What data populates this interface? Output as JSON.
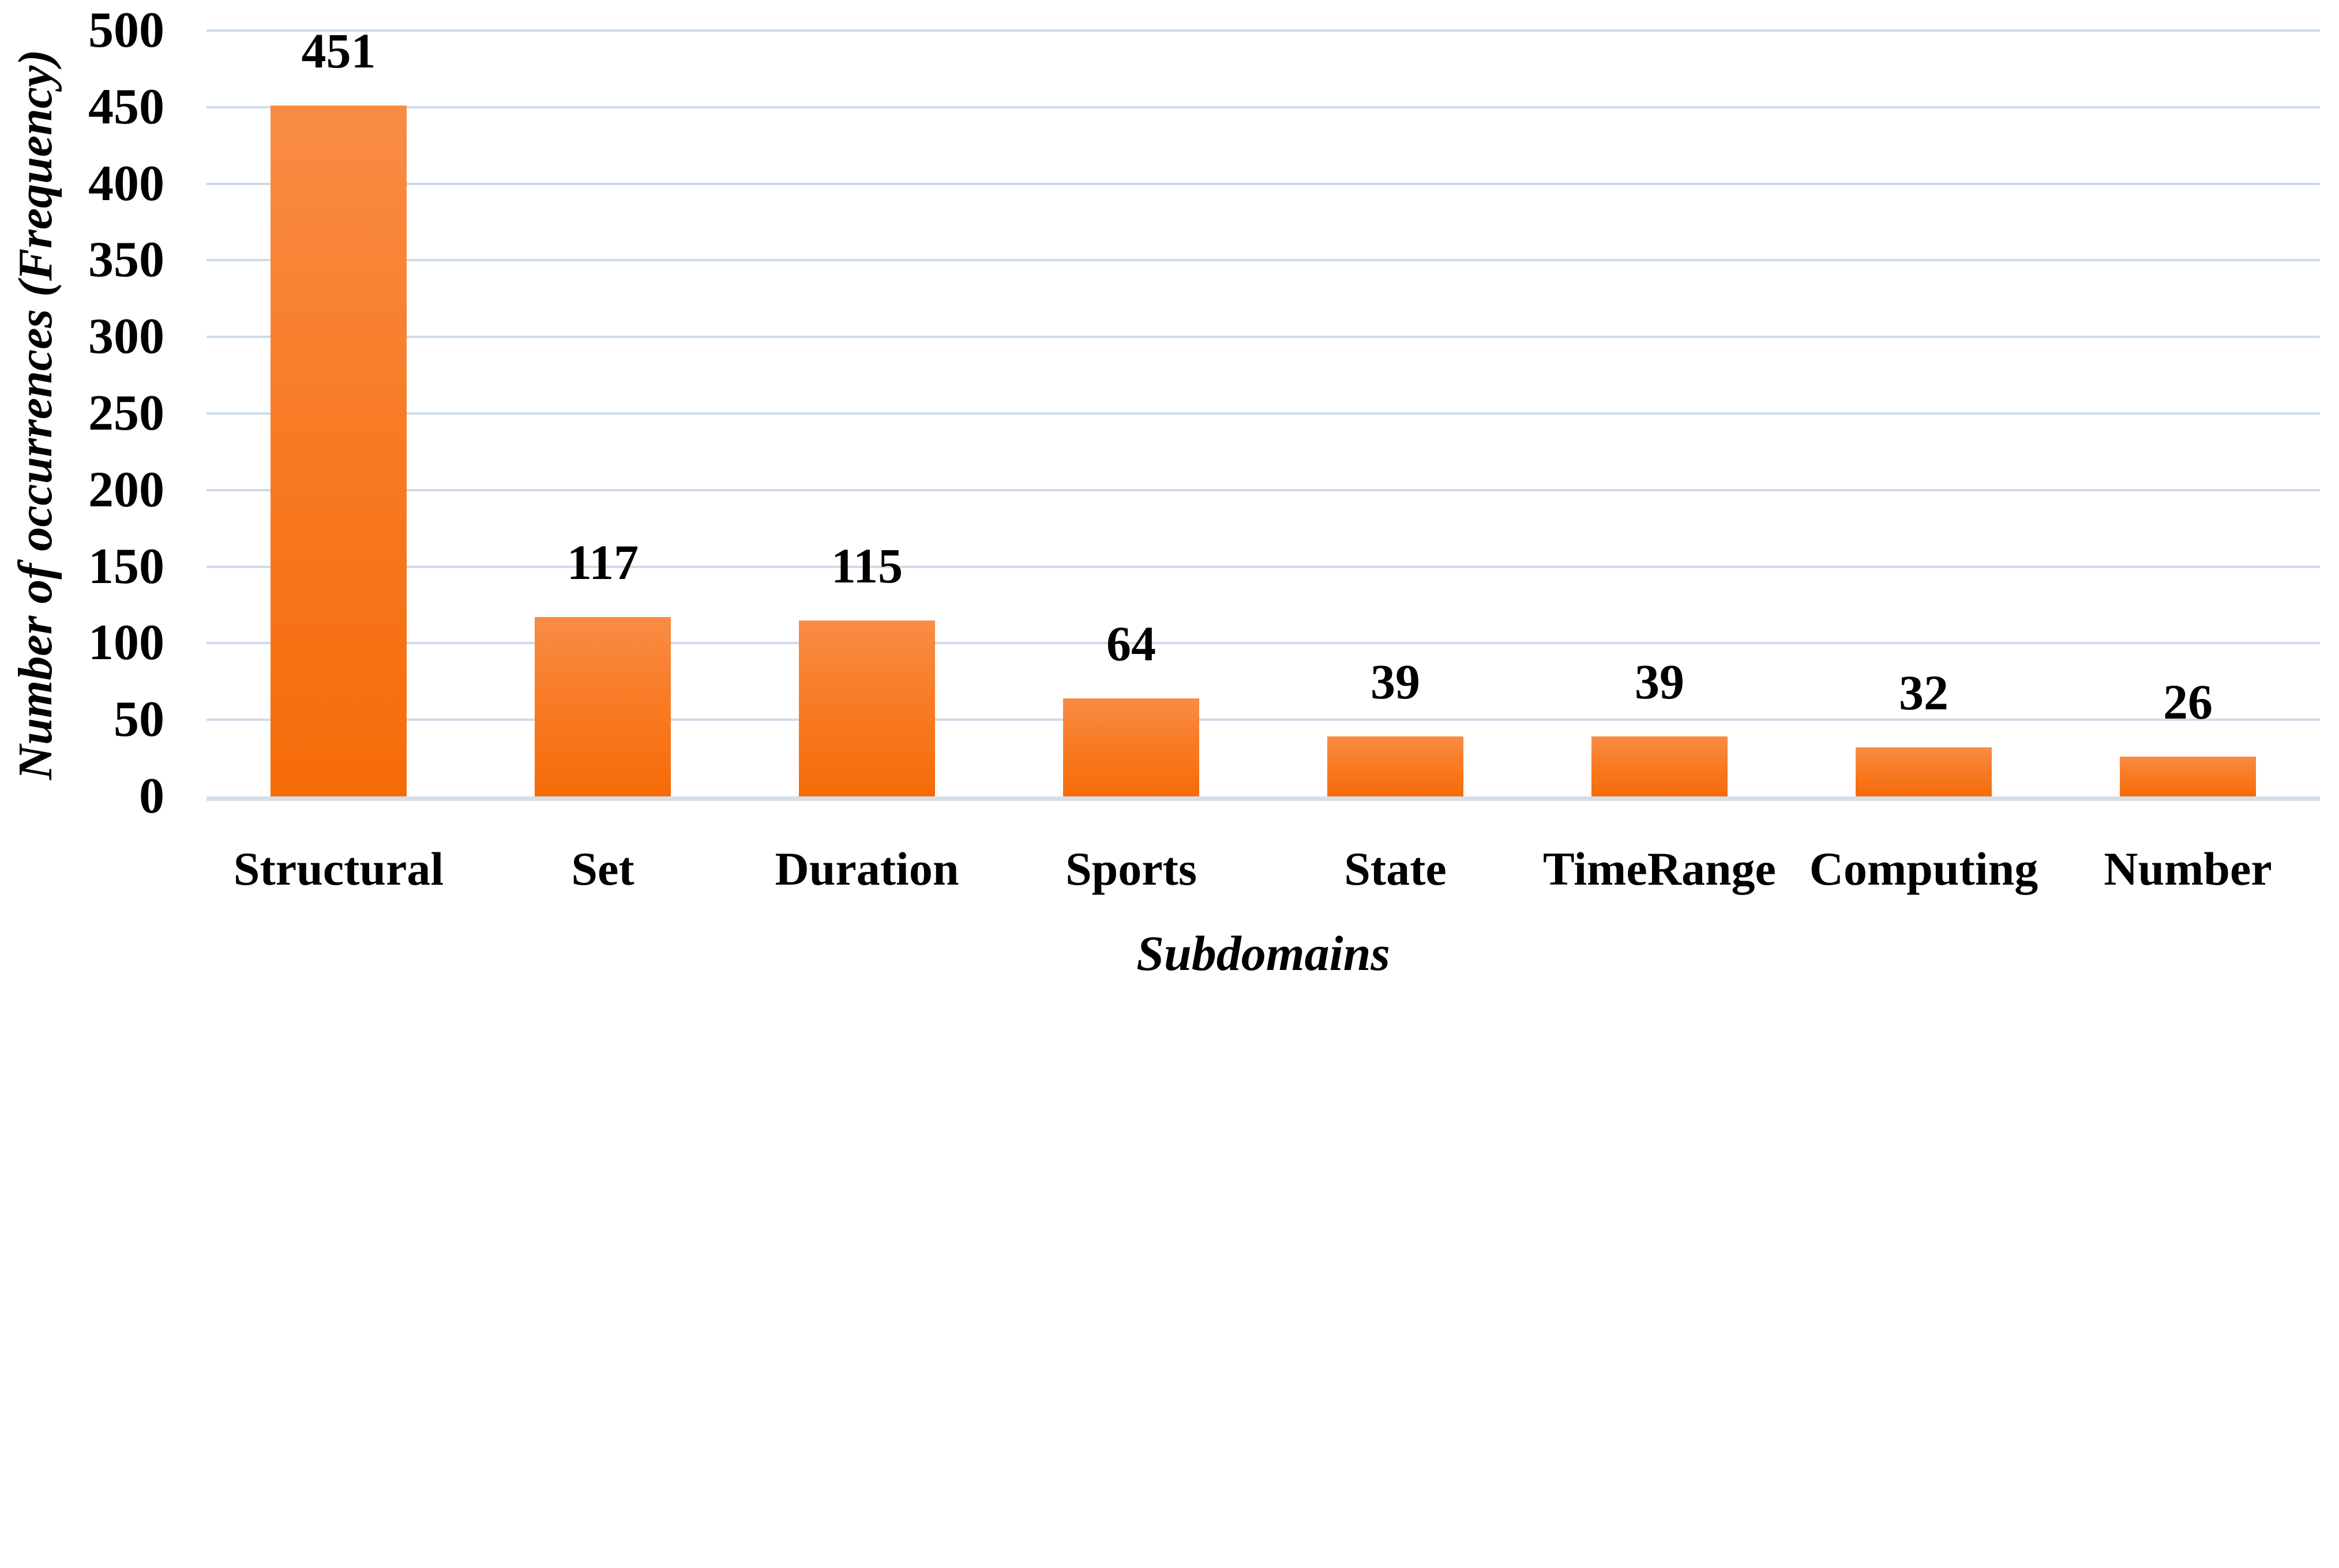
{
  "chart_data": {
    "type": "bar",
    "title": "",
    "categories": [
      "Structural",
      "Set",
      "Duration",
      "Sports",
      "State",
      "TimeRange",
      "Computing",
      "Number"
    ],
    "values": [
      451,
      117,
      115,
      64,
      39,
      39,
      32,
      26
    ],
    "data_labels": [
      "451",
      "117",
      "115",
      "64",
      "39",
      "39",
      "32",
      "26"
    ],
    "xlabel": "Subdomains",
    "ylabel": "Number of occurrences (Frequency)",
    "ylim": [
      0,
      500
    ],
    "yticks": [
      0,
      50,
      100,
      150,
      200,
      250,
      300,
      350,
      400,
      450,
      500
    ],
    "grid": "horizontal",
    "legend": "none",
    "colors": {
      "bar_top": "#F98C45",
      "bar_mid": "#F87C26",
      "bar_bottom": "#F66B09",
      "gridline": "#CDDBE9",
      "axis_line": "#D6DFE8",
      "text": "#000000",
      "background": "#FFFFFF"
    }
  }
}
